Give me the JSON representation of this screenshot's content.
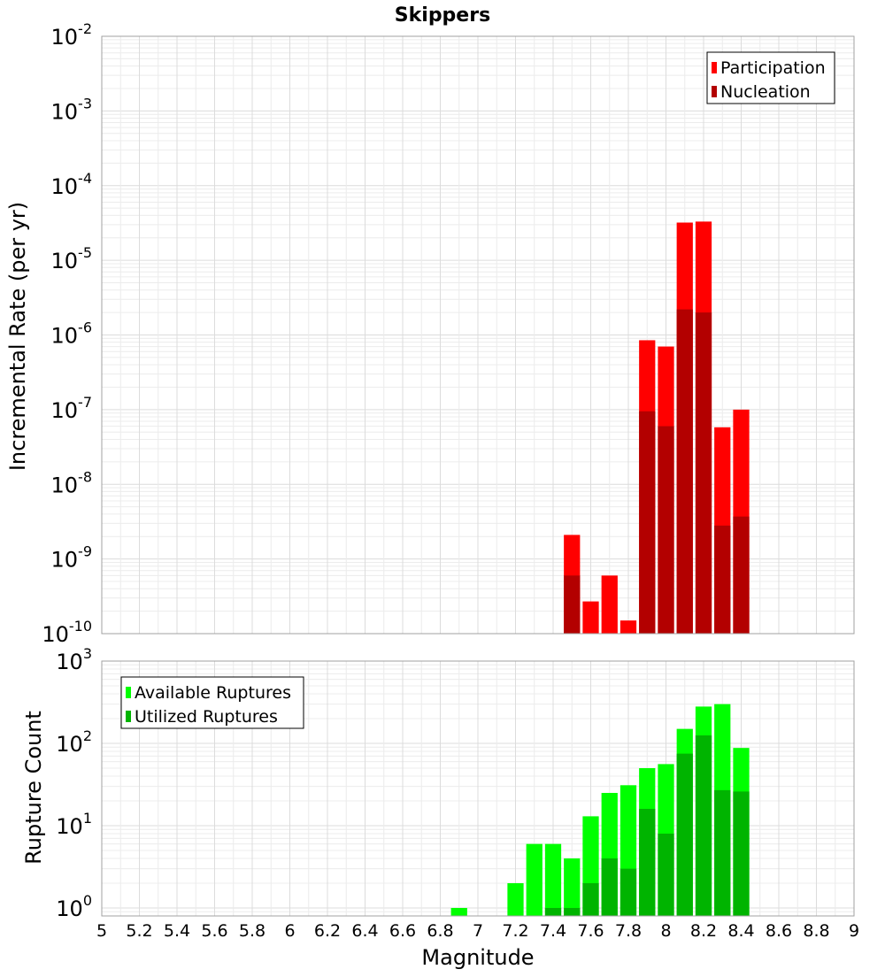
{
  "chart_data": [
    {
      "type": "bar",
      "title": "Skippers",
      "ylabel": "Incremental Rate (per yr)",
      "xlabel": "",
      "yscale": "log",
      "ylim": [
        1e-10,
        0.01
      ],
      "xlim": [
        5,
        9
      ],
      "y_tick_exponents": [
        -10,
        -9,
        -8,
        -7,
        -6,
        -5,
        -4,
        -3,
        -2
      ],
      "legend": {
        "placement": "top-right",
        "entries": [
          "Participation",
          "Nucleation"
        ]
      },
      "colors": {
        "Participation": "#ff0000",
        "Nucleation": "#b30000"
      },
      "bar_width": 0.1,
      "x": [
        7.5,
        7.6,
        7.7,
        7.8,
        7.9,
        8.0,
        8.1,
        8.2,
        8.3,
        8.4
      ],
      "series": [
        {
          "name": "Participation",
          "values": [
            2.1e-09,
            2.7e-10,
            6e-10,
            1.5e-10,
            8.5e-07,
            7e-07,
            3.2e-05,
            3.3e-05,
            5.8e-08,
            1e-07
          ]
        },
        {
          "name": "Nucleation",
          "values": [
            6e-10,
            null,
            null,
            null,
            9.5e-08,
            6e-08,
            2.2e-06,
            2e-06,
            2.8e-09,
            3.7e-09
          ]
        }
      ]
    },
    {
      "type": "bar",
      "ylabel": "Rupture Count",
      "xlabel": "Magnitude",
      "yscale": "log",
      "ylim": [
        0.8,
        1000
      ],
      "xlim": [
        5,
        9
      ],
      "y_tick_exponents": [
        0,
        1,
        2,
        3
      ],
      "x_ticks": [
        "5",
        "5.2",
        "5.4",
        "5.6",
        "5.8",
        "6",
        "6.2",
        "6.4",
        "6.6",
        "6.8",
        "7",
        "7.2",
        "7.4",
        "7.6",
        "7.8",
        "8",
        "8.2",
        "8.4",
        "8.6",
        "8.8",
        "9"
      ],
      "legend": {
        "placement": "top-left",
        "entries": [
          "Available Ruptures",
          "Utilized Ruptures"
        ]
      },
      "colors": {
        "Available Ruptures": "#00ff00",
        "Utilized Ruptures": "#00b400"
      },
      "bar_width": 0.1,
      "x": [
        6.9,
        7.2,
        7.3,
        7.4,
        7.5,
        7.6,
        7.7,
        7.8,
        7.9,
        8.0,
        8.1,
        8.2,
        8.3,
        8.4
      ],
      "series": [
        {
          "name": "Available Ruptures",
          "values": [
            1,
            2,
            6,
            6,
            4,
            13,
            25,
            31,
            50,
            56,
            150,
            280,
            300,
            88
          ]
        },
        {
          "name": "Utilized Ruptures",
          "values": [
            null,
            null,
            null,
            1,
            1,
            2,
            4,
            3,
            16,
            8,
            75,
            125,
            27,
            26
          ]
        }
      ]
    }
  ]
}
